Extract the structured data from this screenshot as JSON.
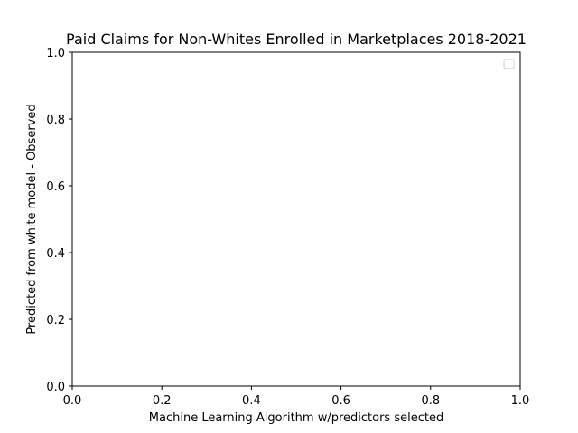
{
  "chart_data": {
    "type": "scatter",
    "title": "Paid Claims for Non-Whites Enrolled in Marketplaces 2018-2021",
    "xlabel": "Machine Learning Algorithm w/predictors selected",
    "ylabel": "Predicted from white model - Observed",
    "xlim": [
      0.0,
      1.0
    ],
    "ylim": [
      0.0,
      1.0
    ],
    "x_ticks": [
      "0.0",
      "0.2",
      "0.4",
      "0.6",
      "0.8",
      "1.0"
    ],
    "y_ticks": [
      "0.0",
      "0.2",
      "0.4",
      "0.6",
      "0.8",
      "1.0"
    ],
    "series": [],
    "grid": false,
    "legend": {
      "placement": "top-right",
      "entries": []
    }
  }
}
